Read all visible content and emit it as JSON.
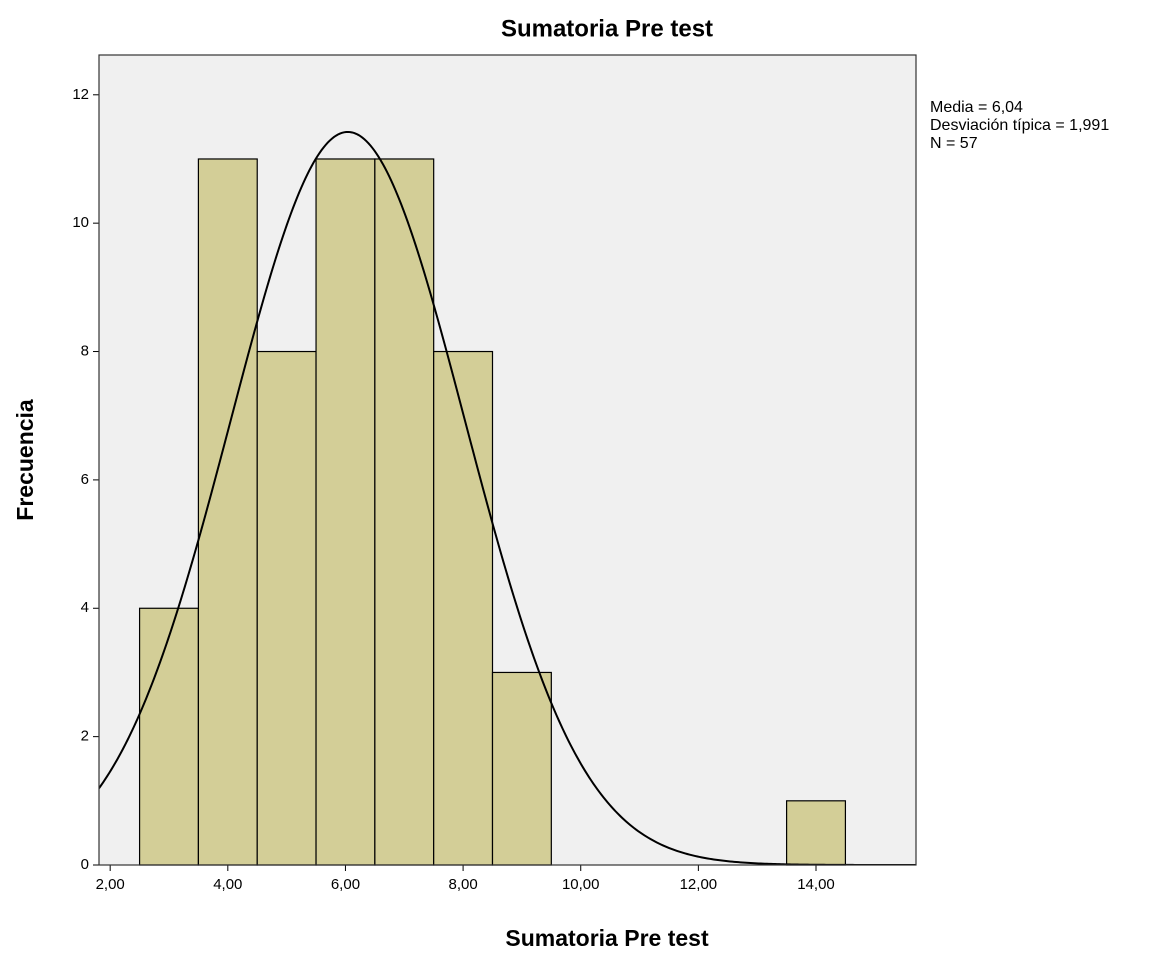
{
  "chart_data": {
    "type": "histogram",
    "title": "Sumatoria Pre test",
    "x_label": "Sumatoria Pre test",
    "y_label": "Frecuencia",
    "bins": [
      2.5,
      3.5,
      4.5,
      5.5,
      6.5,
      7.5,
      8.5,
      9.5,
      10.5,
      11.5,
      12.5,
      13.5,
      14.5
    ],
    "counts": [
      4,
      11,
      8,
      11,
      11,
      8,
      3,
      0,
      0,
      0,
      0,
      1
    ],
    "color": "#d3ce97",
    "xlim": [
      1.81,
      15.7
    ],
    "xticks": [
      {
        "value": 2,
        "label": "2,00"
      },
      {
        "value": 4,
        "label": "4,00"
      },
      {
        "value": 6,
        "label": "6,00"
      },
      {
        "value": 8,
        "label": "8,00"
      },
      {
        "value": 10,
        "label": "10,00"
      },
      {
        "value": 12,
        "label": "12,00"
      },
      {
        "value": 14,
        "label": "14,00"
      }
    ],
    "ylim": [
      0,
      12.62
    ],
    "yticks": [
      0,
      2,
      4,
      6,
      8,
      10,
      12
    ],
    "normal_curve": {
      "mean": 6.04,
      "sd": 1.991,
      "n": 57
    },
    "annotations": [
      "Media = 6,04",
      "Desviación típica = 1,991",
      "N = 57"
    ]
  }
}
